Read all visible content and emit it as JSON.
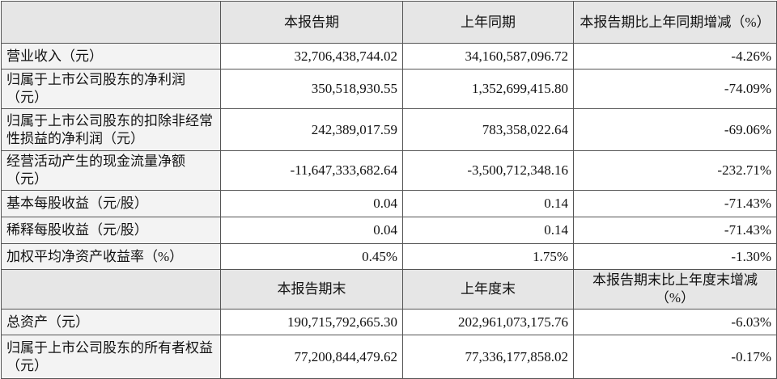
{
  "table": {
    "header": [
      "本报告期",
      "上年同期",
      "本报告期比上年同期增减（%）"
    ],
    "rows": [
      [
        "营业收入（元）",
        "32,706,438,744.02",
        "34,160,587,096.72",
        "-4.26%"
      ],
      [
        "归属于上市公司股东的净利润（元）",
        "350,518,930.55",
        "1,352,699,415.80",
        "-74.09%"
      ],
      [
        "归属于上市公司股东的扣除非经常性损益的净利润（元）",
        "242,389,017.59",
        "783,358,022.64",
        "-69.06%"
      ],
      [
        "经营活动产生的现金流量净额（元）",
        "-11,647,333,682.64",
        "-3,500,712,348.16",
        "-232.71%"
      ],
      [
        "基本每股收益（元/股）",
        "0.04",
        "0.14",
        "-71.43%"
      ],
      [
        "稀释每股收益（元/股）",
        "0.04",
        "0.14",
        "-71.43%"
      ],
      [
        "加权平均净资产收益率（%）",
        "0.45%",
        "1.75%",
        "-1.30%"
      ]
    ],
    "header2": [
      "本报告期末",
      "上年度末",
      "本报告期末比上年度末增减（%）"
    ],
    "rows2": [
      [
        "总资产（元）",
        "190,715,792,665.30",
        "202,961,073,175.76",
        "-6.03%"
      ],
      [
        "归属于上市公司股东的所有者权益（元）",
        "77,200,844,479.62",
        "77,336,177,858.02",
        "-0.17%"
      ]
    ]
  }
}
